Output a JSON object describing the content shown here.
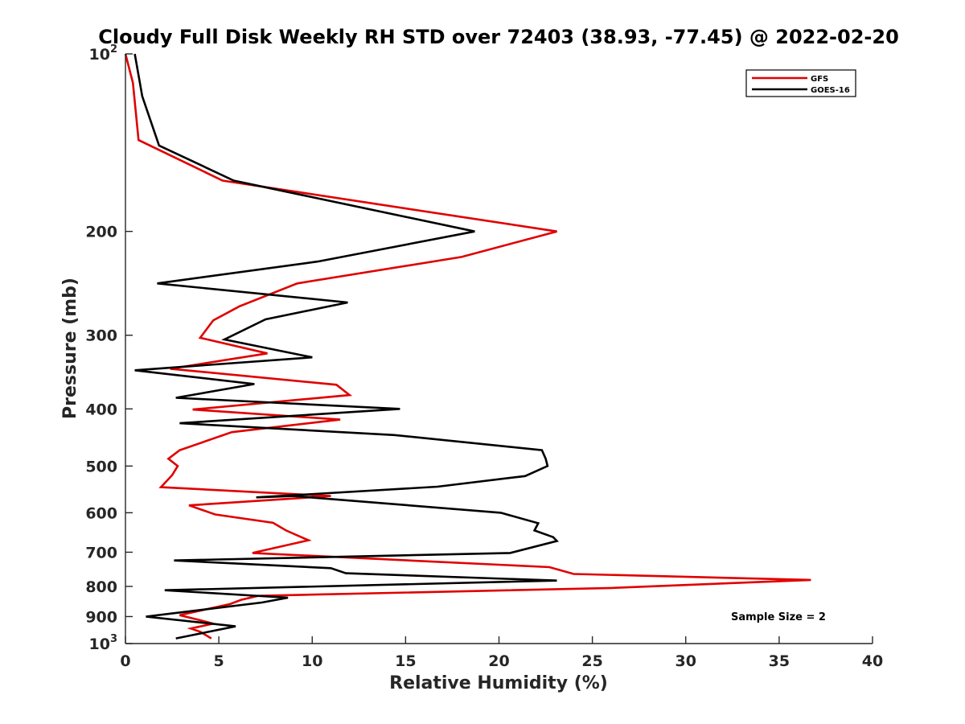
{
  "chart_data": {
    "type": "line",
    "title": "Cloudy Full Disk Weekly RH STD over 72403 (38.93, -77.45) @ 2022-02-20",
    "xlabel": "Relative Humidity (%)",
    "ylabel": "Pressure (mb)",
    "xlim": [
      0,
      40
    ],
    "ylim": [
      100,
      1000
    ],
    "y_scale": "log",
    "y_reversed": true,
    "x_ticks": [
      0,
      5,
      10,
      15,
      20,
      25,
      30,
      35,
      40
    ],
    "x_tick_labels": [
      "0",
      "5",
      "10",
      "15",
      "20",
      "25",
      "30",
      "35",
      "40"
    ],
    "y_ticks": [
      100,
      200,
      300,
      400,
      500,
      600,
      700,
      800,
      900,
      1000
    ],
    "y_tick_labels": [
      {
        "base": "10",
        "sup": "2"
      },
      {
        "base": "200",
        "sup": ""
      },
      {
        "base": "300",
        "sup": ""
      },
      {
        "base": "400",
        "sup": ""
      },
      {
        "base": "500",
        "sup": ""
      },
      {
        "base": "600",
        "sup": ""
      },
      {
        "base": "700",
        "sup": ""
      },
      {
        "base": "800",
        "sup": ""
      },
      {
        "base": "900",
        "sup": ""
      },
      {
        "base": "10",
        "sup": "3"
      }
    ],
    "grid": false,
    "legend_position": "top-right",
    "annotation": "Sample Size = 2",
    "series": [
      {
        "name": "GFS",
        "color": "#e00000",
        "points": [
          [
            0,
            100
          ],
          [
            0.4,
            112
          ],
          [
            0.7,
            140
          ],
          [
            5.2,
            164
          ],
          [
            23.1,
            200
          ],
          [
            18.0,
            221
          ],
          [
            9.2,
            245
          ],
          [
            6.1,
            268
          ],
          [
            4.7,
            283
          ],
          [
            4.0,
            303
          ],
          [
            7.6,
            322
          ],
          [
            2.4,
            342
          ],
          [
            11.3,
            364
          ],
          [
            12.0,
            379
          ],
          [
            3.6,
            401
          ],
          [
            11.5,
            417
          ],
          [
            5.7,
            438
          ],
          [
            2.9,
            470
          ],
          [
            2.3,
            486
          ],
          [
            2.8,
            500
          ],
          [
            2.5,
            518
          ],
          [
            1.9,
            543
          ],
          [
            11.0,
            562
          ],
          [
            3.4,
            583
          ],
          [
            4.8,
            604
          ],
          [
            7.9,
            624
          ],
          [
            8.6,
            643
          ],
          [
            9.8,
            668
          ],
          [
            6.8,
            702
          ],
          [
            22.7,
            742
          ],
          [
            24.0,
            762
          ],
          [
            36.7,
            780
          ],
          [
            26.0,
            805
          ],
          [
            7.1,
            830
          ],
          [
            6.2,
            843
          ],
          [
            5.6,
            857
          ],
          [
            2.9,
            895
          ],
          [
            3.7,
            908
          ],
          [
            4.7,
            925
          ],
          [
            3.5,
            943
          ],
          [
            4.0,
            955
          ],
          [
            4.6,
            980
          ]
        ]
      },
      {
        "name": "GOES-16",
        "color": "#000000",
        "points": [
          [
            0.5,
            100
          ],
          [
            0.9,
            118
          ],
          [
            1.8,
            143
          ],
          [
            5.8,
            164
          ],
          [
            18.7,
            200
          ],
          [
            10.3,
            225
          ],
          [
            1.7,
            245
          ],
          [
            11.9,
            264
          ],
          [
            7.5,
            282
          ],
          [
            5.3,
            305
          ],
          [
            10.0,
            327
          ],
          [
            0.5,
            344
          ],
          [
            6.9,
            363
          ],
          [
            2.7,
            383
          ],
          [
            14.7,
            400
          ],
          [
            2.9,
            423
          ],
          [
            14.4,
            443
          ],
          [
            22.3,
            470
          ],
          [
            22.5,
            486
          ],
          [
            22.6,
            500
          ],
          [
            21.4,
            520
          ],
          [
            16.7,
            542
          ],
          [
            7.0,
            565
          ],
          [
            9.0,
            562
          ],
          [
            20.1,
            600
          ],
          [
            22.1,
            625
          ],
          [
            21.9,
            643
          ],
          [
            22.9,
            660
          ],
          [
            23.1,
            670
          ],
          [
            20.6,
            702
          ],
          [
            2.6,
            723
          ],
          [
            11.0,
            745
          ],
          [
            11.8,
            760
          ],
          [
            23.1,
            782
          ],
          [
            2.1,
            812
          ],
          [
            8.7,
            836
          ],
          [
            7.3,
            852
          ],
          [
            1.1,
            900
          ],
          [
            5.9,
            935
          ],
          [
            2.7,
            980
          ]
        ]
      }
    ]
  }
}
